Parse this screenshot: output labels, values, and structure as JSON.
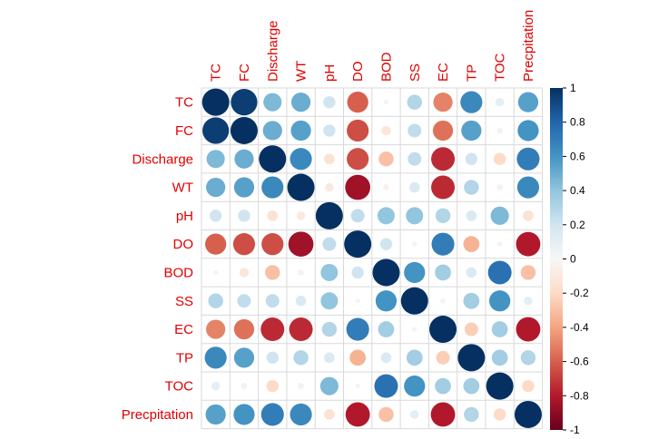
{
  "chart_data": {
    "type": "heatmap",
    "variables": [
      "TC",
      "FC",
      "Discharge",
      "WT",
      "pH",
      "DO",
      "BOD",
      "SS",
      "EC",
      "TP",
      "TOC",
      "Precpitation"
    ],
    "matrix": [
      [
        1.0,
        0.95,
        0.45,
        0.5,
        0.2,
        -0.6,
        -0.03,
        0.3,
        -0.5,
        0.65,
        0.1,
        0.55
      ],
      [
        0.95,
        1.0,
        0.5,
        0.55,
        0.2,
        -0.65,
        -0.12,
        0.25,
        -0.55,
        0.55,
        0.05,
        0.6
      ],
      [
        0.45,
        0.5,
        1.0,
        0.65,
        -0.15,
        -0.65,
        -0.3,
        0.25,
        -0.75,
        0.2,
        -0.2,
        0.7
      ],
      [
        0.5,
        0.55,
        0.65,
        1.0,
        -0.1,
        -0.85,
        -0.05,
        0.15,
        -0.75,
        0.3,
        0.05,
        0.65
      ],
      [
        0.2,
        0.2,
        -0.15,
        -0.1,
        1.0,
        0.25,
        0.4,
        0.4,
        0.3,
        0.15,
        0.45,
        -0.15
      ],
      [
        -0.6,
        -0.65,
        -0.65,
        -0.85,
        0.25,
        1.0,
        0.2,
        0.03,
        0.7,
        -0.35,
        0.03,
        -0.8
      ],
      [
        -0.03,
        -0.12,
        -0.3,
        -0.05,
        0.4,
        0.2,
        1.0,
        0.6,
        0.35,
        0.15,
        0.75,
        -0.3
      ],
      [
        0.3,
        0.25,
        0.25,
        0.15,
        0.4,
        0.03,
        0.6,
        1.0,
        0.03,
        0.35,
        0.6,
        0.1
      ],
      [
        -0.5,
        -0.55,
        -0.75,
        -0.75,
        0.3,
        0.7,
        0.35,
        0.03,
        1.0,
        -0.25,
        0.35,
        -0.8
      ],
      [
        0.65,
        0.55,
        0.2,
        0.3,
        0.15,
        -0.35,
        0.15,
        0.35,
        -0.25,
        1.0,
        0.35,
        0.3
      ],
      [
        0.1,
        0.05,
        -0.2,
        0.05,
        0.45,
        0.03,
        0.75,
        0.6,
        0.35,
        0.35,
        1.0,
        -0.2
      ],
      [
        0.55,
        0.6,
        0.7,
        0.65,
        -0.15,
        -0.8,
        -0.3,
        0.1,
        -0.8,
        0.3,
        -0.2,
        1.0
      ]
    ],
    "colorbar": {
      "ticks": [
        "1",
        "0.8",
        "0.6",
        "0.4",
        "0.2",
        "0",
        "-0.2",
        "-0.4",
        "-0.6",
        "-0.8",
        "-1"
      ],
      "range": [
        -1,
        1
      ]
    },
    "colors": {
      "positive": "#053061",
      "neutral": "#f7f7f7",
      "negative": "#67001f",
      "labels": "#e00000"
    },
    "grid": true,
    "marker": "circle"
  }
}
